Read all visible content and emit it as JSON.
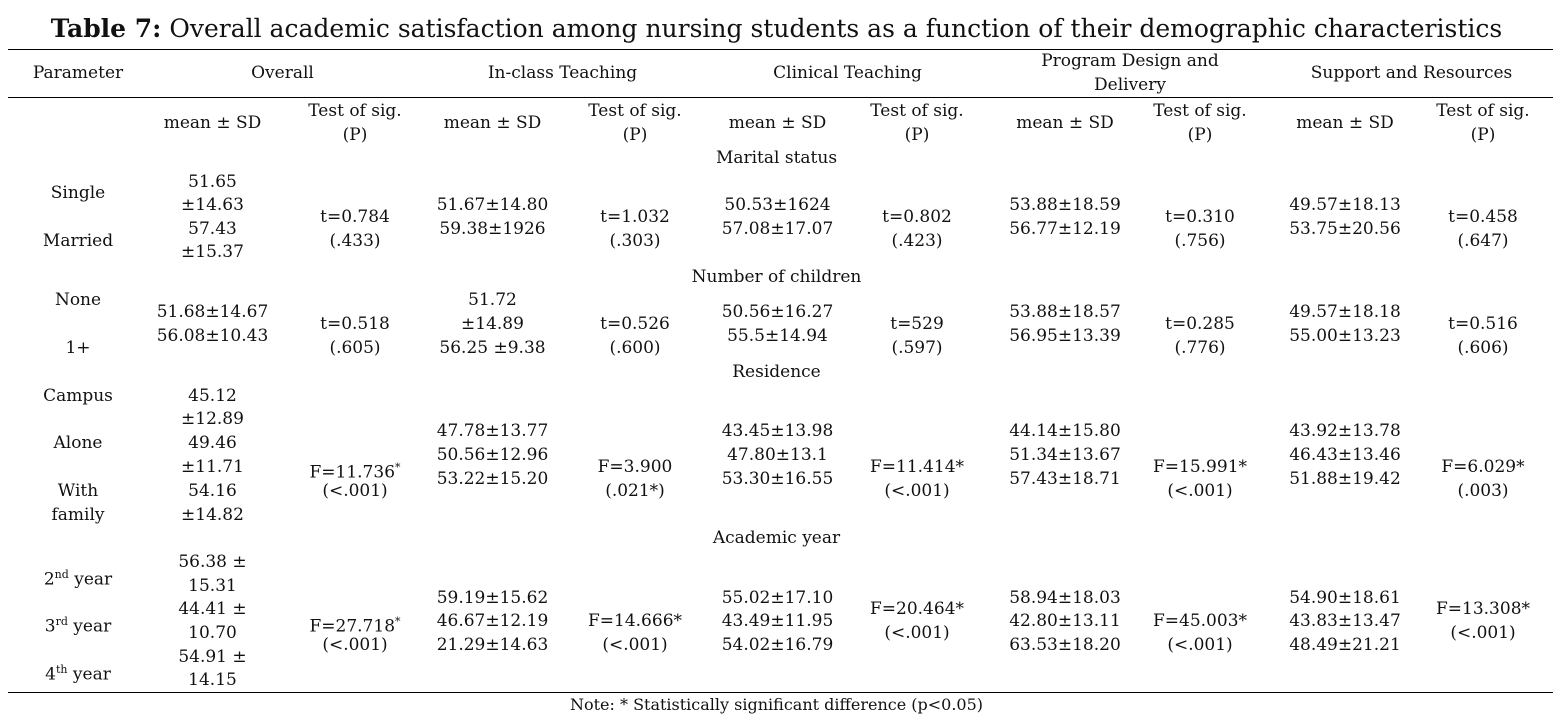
{
  "title_bold": "Table 7:",
  "title_rest": " Overall academic satisfaction among nursing students as a function of their demographic characteristics",
  "headers": {
    "parameter": "Parameter",
    "overall": "Overall",
    "inclass": "In-class Teaching",
    "clinical": "Clinical Teaching",
    "program_line1": "Program Design and",
    "program_line2": "Delivery",
    "support": "Support and Resources",
    "mean_sd": "mean ± SD",
    "test1": "Test of sig.",
    "test2": "(P)"
  },
  "sections": {
    "marital": {
      "label": "Marital status",
      "rows": [
        "Single",
        "Married"
      ],
      "overall": [
        "51.65",
        "±14.63",
        "57.43",
        "±15.37"
      ],
      "overall_test": [
        "t=0.784",
        "(.433)"
      ],
      "inclass": [
        "51.67±14.80",
        "59.38±1926"
      ],
      "inclass_test": [
        "t=1.032",
        "(.303)"
      ],
      "clinical": [
        "50.53±1624",
        "57.08±17.07"
      ],
      "clinical_test": [
        "t=0.802",
        "(.423)"
      ],
      "program": [
        "53.88±18.59",
        "56.77±12.19"
      ],
      "program_test": [
        "t=0.310",
        "(.756)"
      ],
      "support": [
        "49.57±18.13",
        "53.75±20.56"
      ],
      "support_test": [
        "t=0.458",
        "(.647)"
      ]
    },
    "children": {
      "label": "Number of children",
      "rows": [
        "None",
        "1+"
      ],
      "overall": [
        "51.68±14.67",
        "56.08±10.43"
      ],
      "overall_test": [
        "t=0.518",
        "(.605)"
      ],
      "inclass": [
        "51.72",
        "±14.89",
        "56.25 ±9.38"
      ],
      "inclass_test": [
        "t=0.526",
        "(.600)"
      ],
      "clinical": [
        "50.56±16.27",
        "55.5±14.94"
      ],
      "clinical_test": [
        "t=529",
        "(.597)"
      ],
      "program": [
        "53.88±18.57",
        "56.95±13.39"
      ],
      "program_test": [
        "t=0.285",
        "(.776)"
      ],
      "support": [
        "49.57±18.18",
        "55.00±13.23"
      ],
      "support_test": [
        "t=0.516",
        "(.606)"
      ]
    },
    "residence": {
      "label": "Residence",
      "rows": [
        "Campus",
        "Alone",
        "With",
        "family"
      ],
      "overall": [
        "45.12",
        "±12.89",
        "49.46",
        "±11.71",
        "54.16",
        "±14.82"
      ],
      "overall_test": [
        "F=11.736",
        "*",
        "(<.001)"
      ],
      "inclass": [
        "47.78±13.77",
        "50.56±12.96",
        "53.22±15.20"
      ],
      "inclass_test": [
        "F=3.900",
        "(.021*)"
      ],
      "clinical": [
        "43.45±13.98",
        "47.80±13.1",
        "53.30±16.55"
      ],
      "clinical_test": [
        "F=11.414*",
        "(<.001)"
      ],
      "program": [
        "44.14±15.80",
        "51.34±13.67",
        "57.43±18.71"
      ],
      "program_test": [
        "F=15.991*",
        "(<.001)"
      ],
      "support": [
        "43.92±13.78",
        "46.43±13.46",
        "51.88±19.42"
      ],
      "support_test": [
        "F=6.029*",
        "(.003)"
      ]
    },
    "year": {
      "label": "Academic year",
      "rows": [
        {
          "num": "2",
          "sup": "nd",
          "rest": " year"
        },
        {
          "num": "3",
          "sup": "rd",
          "rest": " year"
        },
        {
          "num": "4",
          "sup": "th",
          "rest": " year"
        }
      ],
      "overall": [
        "56.38 ±",
        "15.31",
        "44.41 ±",
        "10.70",
        "54.91 ±",
        "14.15"
      ],
      "overall_test": [
        "F=27.718",
        "*",
        "(<.001)"
      ],
      "inclass": [
        "59.19±15.62",
        "46.67±12.19",
        "21.29±14.63"
      ],
      "inclass_test": [
        "F=14.666*",
        "(<.001)"
      ],
      "clinical": [
        "55.02±17.10",
        "43.49±11.95",
        "54.02±16.79"
      ],
      "clinical_test": [
        "F=20.464*",
        "(<.001)"
      ],
      "program": [
        "58.94±18.03",
        "42.80±13.11",
        "63.53±18.20"
      ],
      "program_test": [
        "F=45.003*",
        "(<.001)"
      ],
      "support": [
        "54.90±18.61",
        "43.83±13.47",
        "48.49±21.21"
      ],
      "support_test": [
        "F=13.308*",
        "(<.001)"
      ]
    }
  },
  "note": "Note: * Statistically significant difference (p<0.05)"
}
